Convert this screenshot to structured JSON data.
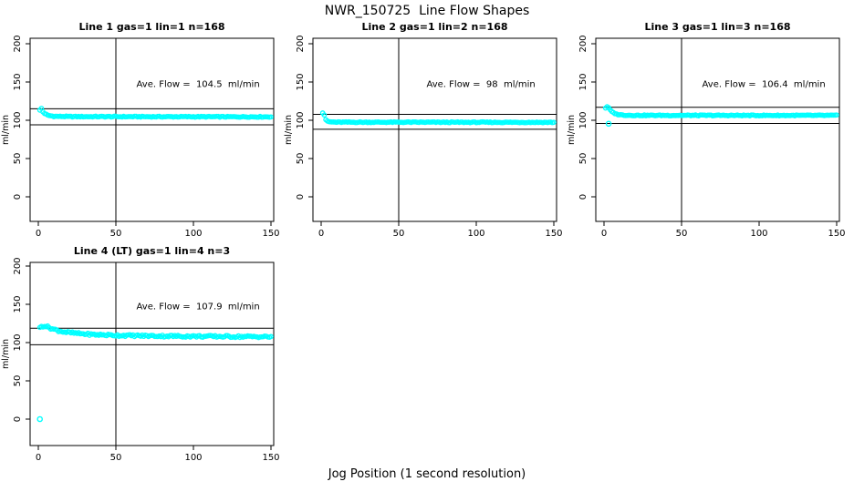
{
  "figure": {
    "title": "NWR_150725  Line Flow Shapes",
    "xlabel": "Jog Position (1 second resolution)",
    "point_color": "#00ffff",
    "axis_color": "#000000",
    "background": "#ffffff"
  },
  "chart_data": [
    {
      "type": "scatter",
      "title": "Line 1 gas=1 lin=1 n=168",
      "ylabel": "ml/min",
      "n": 168,
      "ave_flow": 104.5,
      "ave_flow_text": "Ave. Flow =  104.5  ml/min",
      "x_ticks": [
        0,
        50,
        100,
        150
      ],
      "y_ticks": [
        0,
        50,
        100,
        150,
        200
      ],
      "xlim": [
        -5,
        152
      ],
      "ylim": [
        -32,
        207
      ],
      "vline_x": 50,
      "ref_lines_y": [
        115.0,
        94.1
      ],
      "x_range": [
        1,
        150
      ],
      "jitter": 0.6,
      "profile": [
        [
          1,
          113
        ],
        [
          2,
          115.5
        ],
        [
          3,
          111
        ],
        [
          4,
          109
        ],
        [
          6,
          106.5
        ],
        [
          10,
          105.2
        ],
        [
          20,
          104.8
        ],
        [
          150,
          104.5
        ]
      ],
      "outliers": []
    },
    {
      "type": "scatter",
      "title": "Line 2 gas=1 lin=2 n=168",
      "ylabel": "ml/min",
      "n": 168,
      "ave_flow": 98,
      "ave_flow_text": "Ave. Flow =  98  ml/min",
      "x_ticks": [
        0,
        50,
        100,
        150
      ],
      "y_ticks": [
        0,
        50,
        100,
        150,
        200
      ],
      "xlim": [
        -5,
        152
      ],
      "ylim": [
        -32,
        207
      ],
      "vline_x": 50,
      "ref_lines_y": [
        107.8,
        88.2
      ],
      "x_range": [
        1,
        150
      ],
      "jitter": 0.55,
      "profile": [
        [
          1,
          110
        ],
        [
          2,
          107
        ],
        [
          3,
          101
        ],
        [
          4,
          98.5
        ],
        [
          6,
          97.8
        ],
        [
          10,
          97.5
        ],
        [
          150,
          97.3
        ]
      ],
      "outliers": []
    },
    {
      "type": "scatter",
      "title": "Line 3 gas=1 lin=3 n=168",
      "ylabel": "ml/min",
      "n": 168,
      "ave_flow": 106.4,
      "ave_flow_text": "Ave. Flow =  106.4  ml/min",
      "x_ticks": [
        0,
        50,
        100,
        150
      ],
      "y_ticks": [
        0,
        50,
        100,
        150,
        200
      ],
      "xlim": [
        -5,
        152
      ],
      "ylim": [
        -32,
        207
      ],
      "vline_x": 50,
      "ref_lines_y": [
        117.0,
        95.8
      ],
      "x_range": [
        1,
        150
      ],
      "jitter": 0.6,
      "profile": [
        [
          1,
          116
        ],
        [
          2,
          118
        ],
        [
          3,
          116
        ],
        [
          5,
          111
        ],
        [
          8,
          108
        ],
        [
          12,
          106.8
        ],
        [
          20,
          106.4
        ],
        [
          150,
          106.3
        ]
      ],
      "outliers": [
        [
          3,
          95.5
        ]
      ]
    },
    {
      "type": "scatter",
      "title": "Line 4 (LT) gas=1 lin=4 n=3",
      "ylabel": "ml/min",
      "n": 3,
      "ave_flow": 107.9,
      "ave_flow_text": "Ave. Flow =  107.9  ml/min",
      "x_ticks": [
        0,
        50,
        100,
        150
      ],
      "y_ticks": [
        0,
        50,
        100,
        150,
        200
      ],
      "xlim": [
        -5,
        152
      ],
      "ylim": [
        -32,
        207
      ],
      "vline_x": 50,
      "ref_lines_y": [
        118.7,
        97.1
      ],
      "x_range": [
        1,
        150
      ],
      "jitter": 1.3,
      "profile": [
        [
          1,
          119
        ],
        [
          2,
          121
        ],
        [
          4,
          122
        ],
        [
          6,
          120.5
        ],
        [
          9,
          118
        ],
        [
          13,
          115.5
        ],
        [
          18,
          113.5
        ],
        [
          25,
          112
        ],
        [
          35,
          110.5
        ],
        [
          50,
          109.5
        ],
        [
          70,
          108.8
        ],
        [
          100,
          108.2
        ],
        [
          150,
          107.6
        ]
      ],
      "outliers": [
        [
          1,
          0
        ]
      ]
    }
  ]
}
